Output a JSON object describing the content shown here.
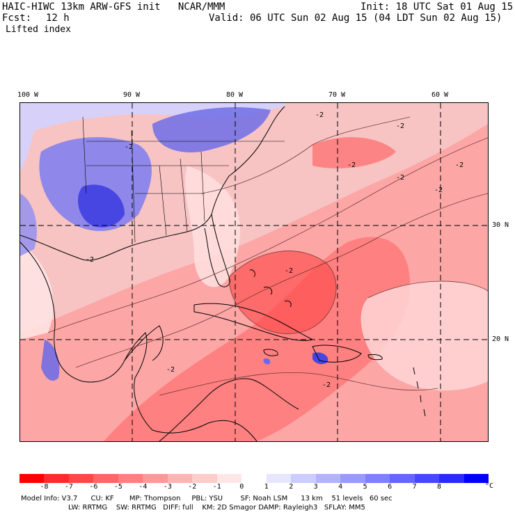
{
  "header": {
    "title": "HAIC-HIWC 13km ARW-GFS init   NCAR/MMM",
    "init": "Init: 18 UTC Sat 01 Aug 15",
    "fcst_label": "Fcst:",
    "fcst_value": "12 h",
    "valid": "Valid: 06 UTC Sun 02 Aug 15 (04 LDT Sun 02 Aug 15)",
    "field": "Lifted index"
  },
  "axes": {
    "lon_labels": [
      "100 W",
      "90 W",
      "80 W",
      "70 W",
      "60 W"
    ],
    "lat_labels": [
      "30 N",
      "20 N"
    ]
  },
  "contour_label": "-2",
  "colorbar": {
    "colors": [
      "#ff0000",
      "#ff2a2a",
      "#ff4747",
      "#ff6666",
      "#ff8080",
      "#ff9999",
      "#ffb3b3",
      "#ffcccc",
      "#ffe6e6",
      "#ffffff",
      "#e6e6ff",
      "#ccccff",
      "#b3b3ff",
      "#9999ff",
      "#8080ff",
      "#6666ff",
      "#4747ff",
      "#2a2aff",
      "#0000ff"
    ],
    "ticks": [
      "-8",
      "-7",
      "-6",
      "-5",
      "-4",
      "-3",
      "-2",
      "-1",
      "0",
      "1",
      "2",
      "3",
      "4",
      "5",
      "6",
      "7",
      "8"
    ],
    "unit": "°C"
  },
  "footer": {
    "line1": "Model Info: V3.7      CU: KF       MP: Thompson     PBL: YSU        SF: Noah LSM      13 km    51 levels   60 sec",
    "line2": "LW: RRTMG    SW: RRTMG   DIFF: full    KM: 2D Smagor DAMP: Rayleigh3   SFLAY: MM5"
  },
  "palette": {
    "warm_strong": "#ff5a5a",
    "warm_mid": "#ff8f8f",
    "warm_light": "#ffbdbd",
    "neutral": "#fff0f0",
    "cool_light": "#c7c7ff",
    "cool_mid": "#8b8bf0",
    "cool_strong": "#3a3ae0",
    "land_line": "#000000"
  }
}
